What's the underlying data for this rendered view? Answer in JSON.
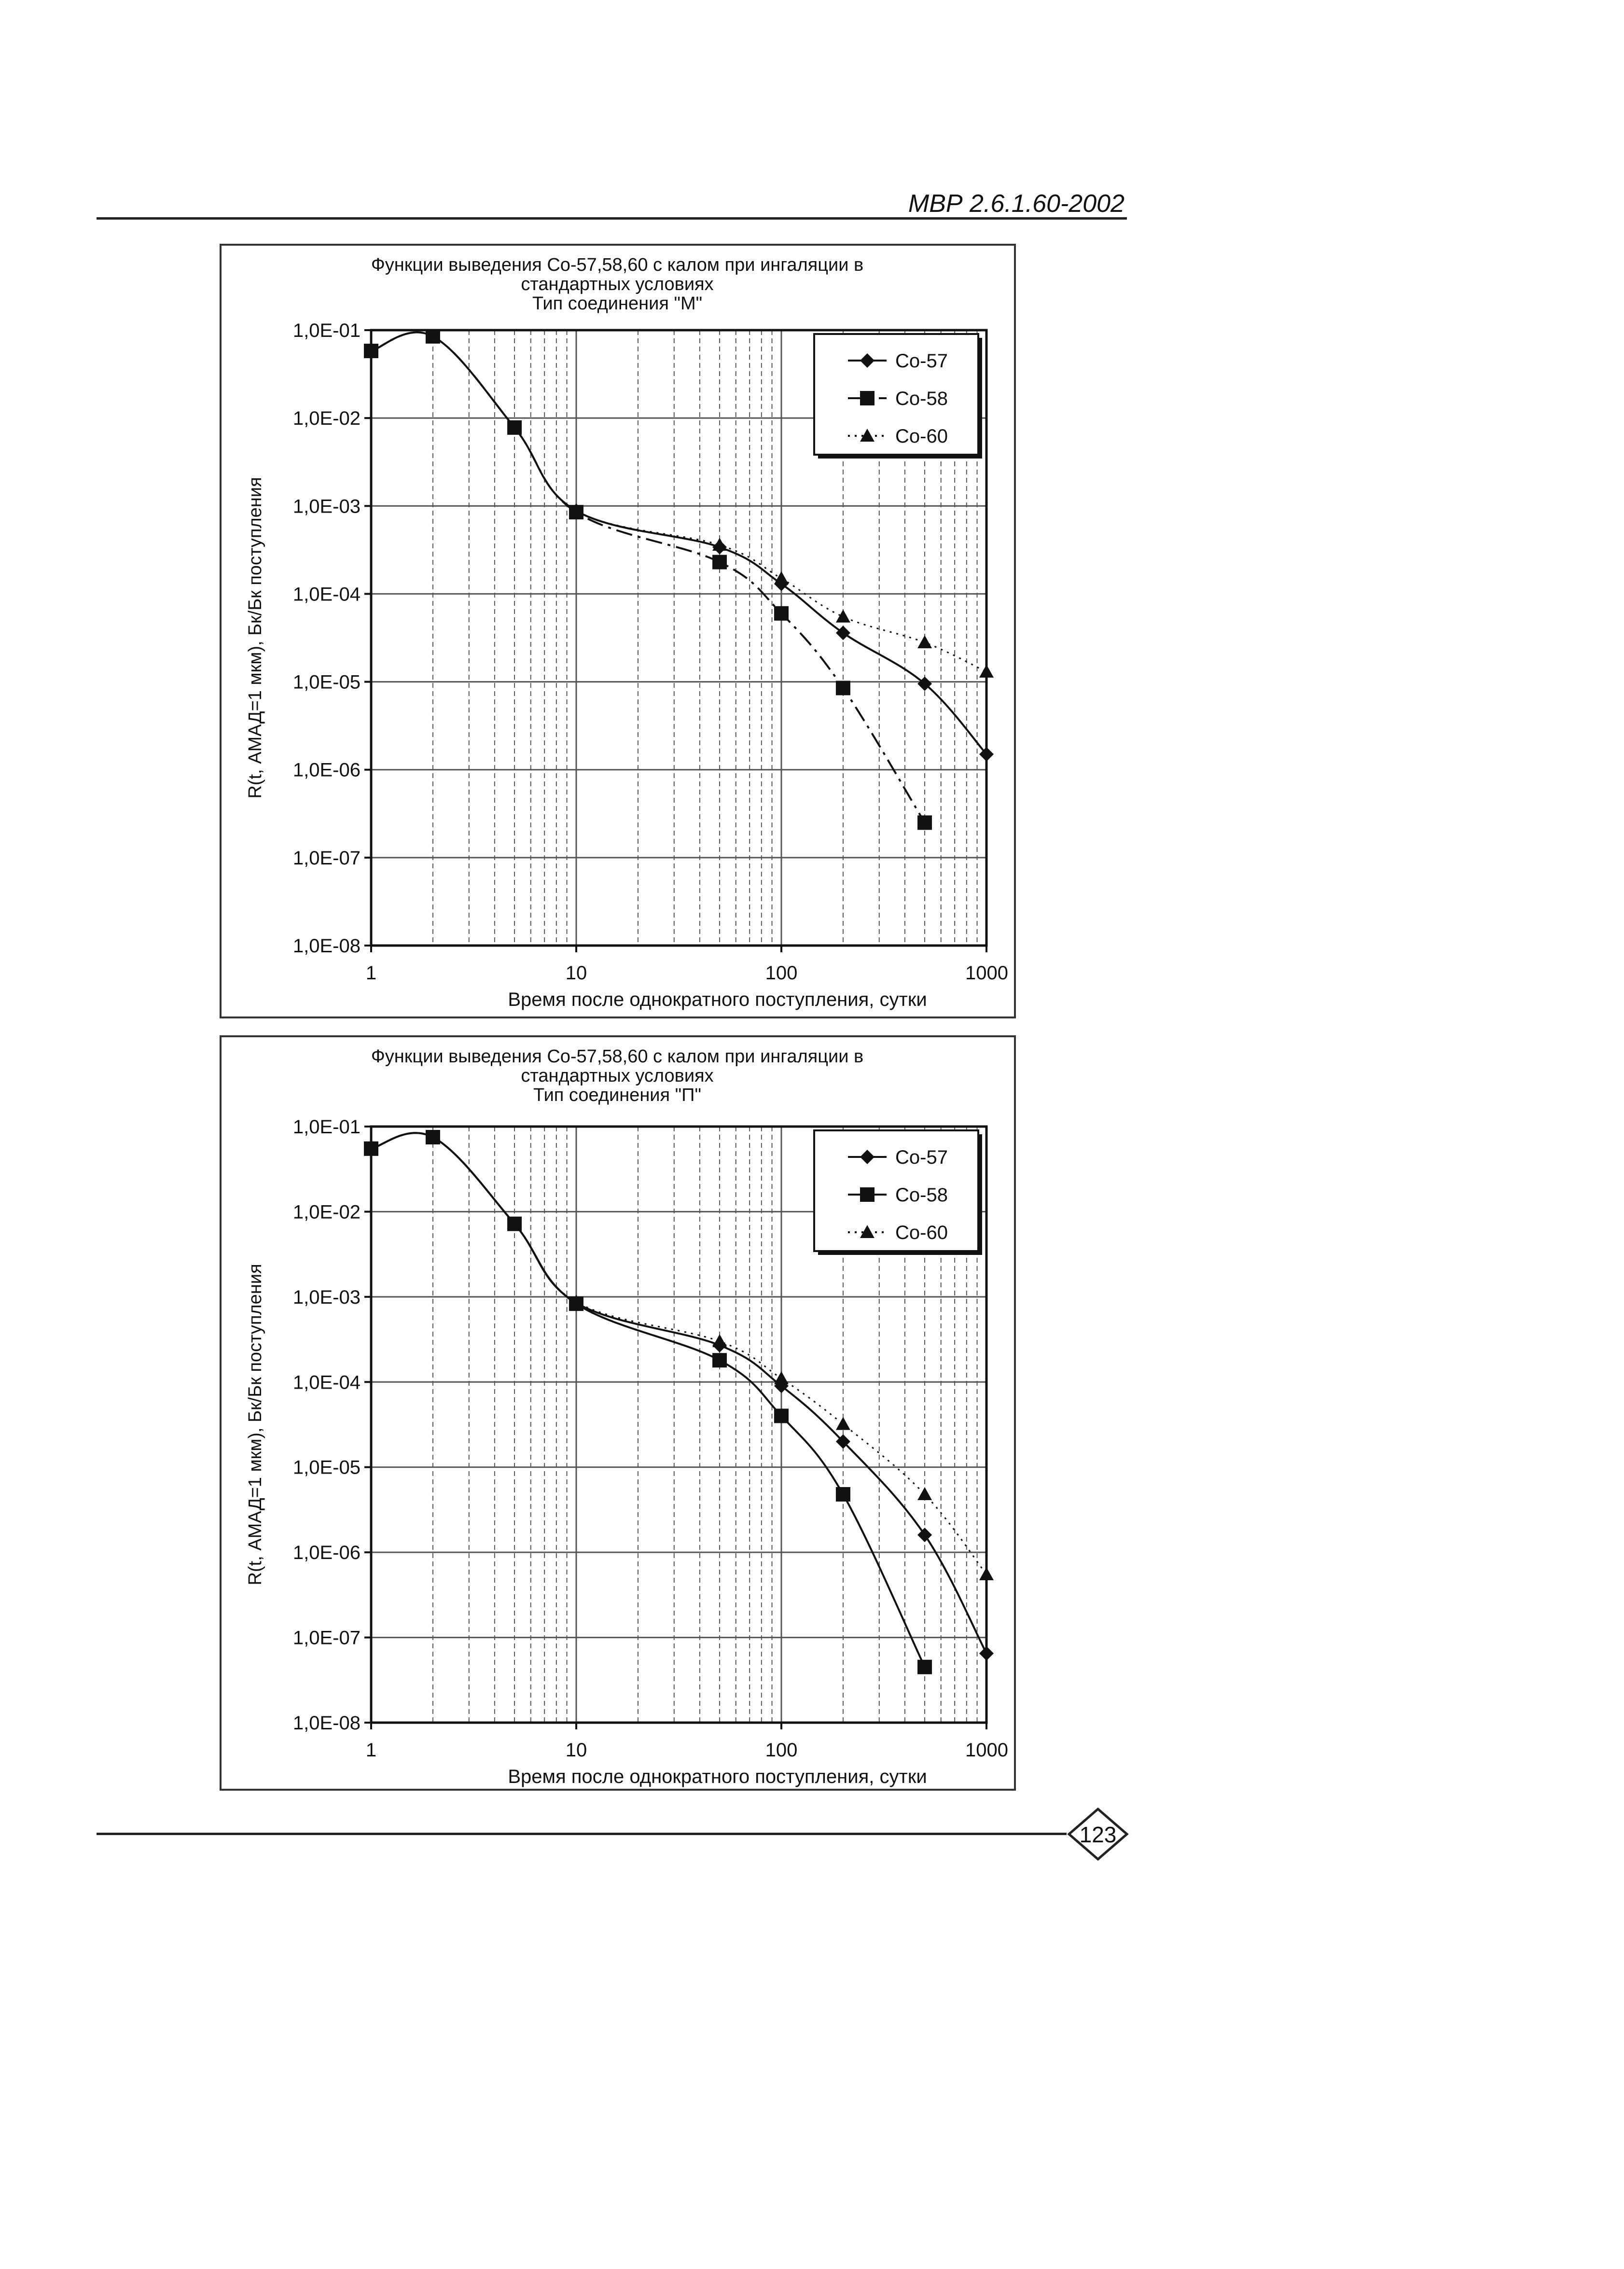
{
  "header": {
    "doc_code": "МВР 2.6.1.60-2002"
  },
  "footer": {
    "page_number": "123"
  },
  "colors": {
    "series": "#111111",
    "grid": "#555555"
  },
  "chart_data": [
    {
      "type": "line",
      "title_lines": [
        "Функции выведения Со-57,58,60 с калом  при ингаляции в",
        "стандартных условиях",
        "Тип соединения \"М\""
      ],
      "xlabel": "Время после однократного поступления, сутки",
      "ylabel": "R(t, АМАД=1 мкм), Бк/Бк поступления",
      "x_scale": "log",
      "y_scale": "log",
      "xlim": [
        1,
        1000
      ],
      "ylim": [
        1e-08,
        0.1
      ],
      "x_ticks": [
        1,
        10,
        100,
        1000
      ],
      "x_tick_labels": [
        "1",
        "10",
        "100",
        "1000"
      ],
      "y_ticks": [
        1e-08,
        1e-07,
        1e-06,
        1e-05,
        0.0001,
        0.001,
        0.01,
        0.1
      ],
      "y_tick_labels": [
        "1,0E-08",
        "1,0E-07",
        "1,0E-06",
        "1,0E-05",
        "1,0E-04",
        "1,0E-03",
        "1,0E-02",
        "1,0E-01"
      ],
      "grid": true,
      "legend_position": "top-right",
      "series": [
        {
          "name": "Co-57",
          "marker": "diamond",
          "dash": "solid",
          "x": [
            1,
            2,
            5,
            10,
            50,
            100,
            200,
            500,
            1000
          ],
          "y": [
            0.058,
            0.085,
            0.0078,
            0.00088,
            0.00034,
            0.00013,
            3.6e-05,
            9.5e-06,
            1.5e-06
          ]
        },
        {
          "name": "Co-58",
          "marker": "square",
          "dash": "dashdot",
          "x": [
            1,
            2,
            5,
            10,
            50,
            100,
            200,
            500
          ],
          "y": [
            0.058,
            0.085,
            0.0078,
            0.00085,
            0.00023,
            6e-05,
            8.5e-06,
            2.5e-07
          ]
        },
        {
          "name": "Co-60",
          "marker": "triangle",
          "dash": "dotted",
          "x": [
            1,
            2,
            5,
            10,
            50,
            100,
            200,
            500,
            1000
          ],
          "y": [
            0.058,
            0.085,
            0.0078,
            0.00088,
            0.00036,
            0.00015,
            5.5e-05,
            2.8e-05,
            1.3e-05
          ]
        }
      ]
    },
    {
      "type": "line",
      "title_lines": [
        "Функции выведения Со-57,58,60 с калом  при ингаляции в",
        "стандартных условиях",
        "Тип соединения \"П\""
      ],
      "xlabel": "Время после однократного поступления, сутки",
      "ylabel": "R(t, АМАД=1 мкм), Бк/Бк поступления",
      "x_scale": "log",
      "y_scale": "log",
      "xlim": [
        1,
        1000
      ],
      "ylim": [
        1e-08,
        0.1
      ],
      "x_ticks": [
        1,
        10,
        100,
        1000
      ],
      "x_tick_labels": [
        "1",
        "10",
        "100",
        "1000"
      ],
      "y_ticks": [
        1e-08,
        1e-07,
        1e-06,
        1e-05,
        0.0001,
        0.001,
        0.01,
        0.1
      ],
      "y_tick_labels": [
        "1,0E-08",
        "1,0E-07",
        "1,0E-06",
        "1,0E-05",
        "1,0E-04",
        "1,0E-03",
        "1,0E-02",
        "1,0E-01"
      ],
      "grid": true,
      "legend_position": "top-right",
      "series": [
        {
          "name": "Co-57",
          "marker": "diamond",
          "dash": "solid",
          "x": [
            1,
            2,
            5,
            10,
            50,
            100,
            200,
            500,
            1000
          ],
          "y": [
            0.055,
            0.075,
            0.0072,
            0.00085,
            0.00027,
            9e-05,
            2e-05,
            1.6e-06,
            6.5e-08
          ]
        },
        {
          "name": "Co-58",
          "marker": "square",
          "dash": "solid",
          "x": [
            1,
            2,
            5,
            10,
            50,
            100,
            200,
            500
          ],
          "y": [
            0.055,
            0.075,
            0.0072,
            0.00083,
            0.00018,
            4e-05,
            4.8e-06,
            4.5e-08
          ]
        },
        {
          "name": "Co-60",
          "marker": "triangle",
          "dash": "dotted",
          "x": [
            1,
            2,
            5,
            10,
            50,
            100,
            200,
            500,
            1000
          ],
          "y": [
            0.055,
            0.075,
            0.0072,
            0.00087,
            0.0003,
            0.00011,
            3.2e-05,
            4.8e-06,
            5.5e-07
          ]
        }
      ]
    }
  ]
}
